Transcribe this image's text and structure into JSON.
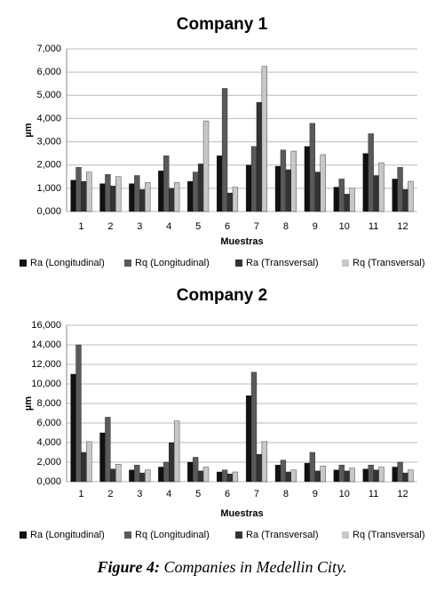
{
  "chart_data": [
    {
      "type": "bar",
      "title": "Company 1",
      "x_label": "Muestras",
      "y_label": "µm",
      "categories": [
        "1",
        "2",
        "3",
        "4",
        "5",
        "6",
        "7",
        "8",
        "9",
        "10",
        "11",
        "12"
      ],
      "series": [
        {
          "name": "Ra (Longitudinal)",
          "color": "#111111",
          "values": [
            1350,
            1200,
            1200,
            1750,
            1300,
            2400,
            2000,
            1950,
            2800,
            1050,
            2500,
            1400
          ]
        },
        {
          "name": "Rq (Longitudinal)",
          "color": "#5a5a5a",
          "values": [
            1900,
            1600,
            1550,
            2400,
            1700,
            5300,
            2800,
            2650,
            3800,
            1400,
            3350,
            1900
          ]
        },
        {
          "name": "Ra (Transversal)",
          "color": "#333333",
          "values": [
            1300,
            1100,
            950,
            1000,
            2050,
            800,
            4700,
            1800,
            1700,
            750,
            1550,
            950
          ]
        },
        {
          "name": "Rq (Transversal)",
          "color": "#c8c8c8",
          "values": [
            1700,
            1500,
            1250,
            1250,
            3900,
            1050,
            6250,
            2600,
            2450,
            1000,
            2100,
            1300
          ]
        }
      ],
      "ylim": [
        0,
        7000
      ],
      "yticks": [
        {
          "value": 0,
          "label": "0,000"
        },
        {
          "value": 1000,
          "label": "1,000"
        },
        {
          "value": 2000,
          "label": "2,000"
        },
        {
          "value": 3000,
          "label": "3,000"
        },
        {
          "value": 4000,
          "label": "4,000"
        },
        {
          "value": 5000,
          "label": "5,000"
        },
        {
          "value": 6000,
          "label": "6,000"
        },
        {
          "value": 7000,
          "label": "7,000"
        }
      ],
      "grid": true,
      "legend": "bottom"
    },
    {
      "type": "bar",
      "title": "Company 2",
      "x_label": "Muestras",
      "y_label": "µm",
      "categories": [
        "1",
        "2",
        "3",
        "4",
        "5",
        "6",
        "7",
        "8",
        "9",
        "10",
        "11",
        "12"
      ],
      "series": [
        {
          "name": "Ra (Longitudinal)",
          "color": "#111111",
          "values": [
            11000,
            5000,
            1200,
            1500,
            2000,
            1000,
            8800,
            1700,
            1900,
            1200,
            1300,
            1500
          ]
        },
        {
          "name": "Rq (Longitudinal)",
          "color": "#5a5a5a",
          "values": [
            14000,
            6600,
            1700,
            2000,
            2500,
            1200,
            11200,
            2200,
            3000,
            1700,
            1700,
            2000
          ]
        },
        {
          "name": "Ra (Transversal)",
          "color": "#333333",
          "values": [
            3000,
            1300,
            900,
            4000,
            1100,
            800,
            2800,
            1000,
            1100,
            1100,
            1200,
            900
          ]
        },
        {
          "name": "Rq (Transversal)",
          "color": "#c8c8c8",
          "values": [
            4100,
            1800,
            1200,
            6200,
            1500,
            1000,
            4100,
            1200,
            1600,
            1400,
            1500,
            1200
          ]
        }
      ],
      "ylim": [
        0,
        16000
      ],
      "yticks": [
        {
          "value": 0,
          "label": "0,000"
        },
        {
          "value": 2000,
          "label": "2,000"
        },
        {
          "value": 4000,
          "label": "4,000"
        },
        {
          "value": 6000,
          "label": "6,000"
        },
        {
          "value": 8000,
          "label": "8,000"
        },
        {
          "value": 10000,
          "label": "10,000"
        },
        {
          "value": 12000,
          "label": "12,000"
        },
        {
          "value": 14000,
          "label": "14,000"
        },
        {
          "value": 16000,
          "label": "16,000"
        }
      ],
      "grid": true,
      "legend": "bottom"
    }
  ],
  "caption": {
    "label": "Figure 4:",
    "text": "Companies in Medellin City."
  }
}
